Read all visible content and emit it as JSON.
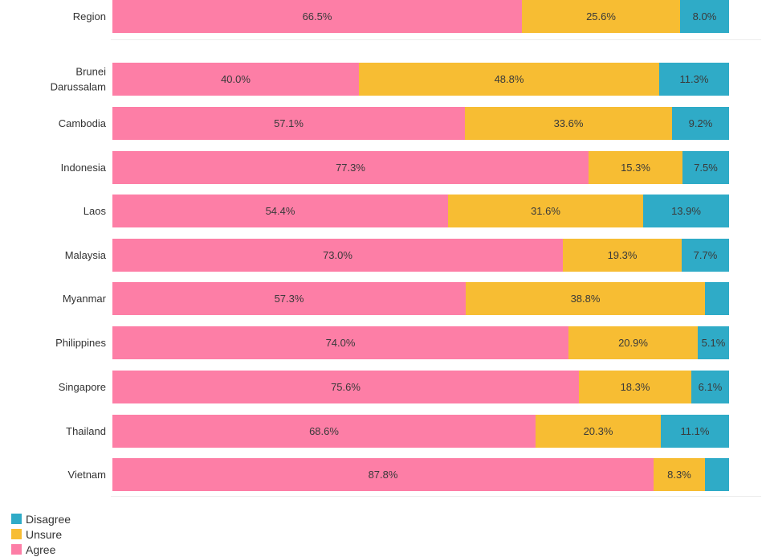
{
  "chart_data": {
    "type": "bar",
    "orientation": "horizontal",
    "stacked": true,
    "title": "",
    "xlabel": "",
    "ylabel": "",
    "xlim": [
      0,
      100
    ],
    "categories": [
      "Region",
      "Brunei Darussalam",
      "Cambodia",
      "Indonesia",
      "Laos",
      "Malaysia",
      "Myanmar",
      "Philippines",
      "Singapore",
      "Thailand",
      "Vietnam"
    ],
    "category_lines": [
      [
        "Region"
      ],
      [
        "Brunei",
        "Darussalam"
      ],
      [
        "Cambodia"
      ],
      [
        "Indonesia"
      ],
      [
        "Laos"
      ],
      [
        "Malaysia"
      ],
      [
        "Myanmar"
      ],
      [
        "Philippines"
      ],
      [
        "Singapore"
      ],
      [
        "Thailand"
      ],
      [
        "Vietnam"
      ]
    ],
    "series": [
      {
        "name": "Agree",
        "color": "#fd7ea6",
        "values": [
          66.5,
          40.0,
          57.1,
          77.3,
          54.4,
          73.0,
          57.3,
          74.0,
          75.6,
          68.6,
          87.8
        ],
        "labels": [
          "66.5%",
          "40.0%",
          "57.1%",
          "77.3%",
          "54.4%",
          "73.0%",
          "57.3%",
          "74.0%",
          "75.6%",
          "68.6%",
          "87.8%"
        ]
      },
      {
        "name": "Unsure",
        "color": "#f7bd33",
        "values": [
          25.6,
          48.8,
          33.6,
          15.3,
          31.6,
          19.3,
          38.8,
          20.9,
          18.3,
          20.3,
          8.3
        ],
        "labels": [
          "25.6%",
          "48.8%",
          "33.6%",
          "15.3%",
          "31.6%",
          "19.3%",
          "38.8%",
          "20.9%",
          "18.3%",
          "20.3%",
          "8.3%"
        ]
      },
      {
        "name": "Disagree",
        "color": "#2fabc7",
        "values": [
          8.0,
          11.3,
          9.2,
          7.5,
          13.9,
          7.7,
          3.9,
          5.1,
          6.1,
          11.1,
          3.9
        ],
        "labels": [
          "8.0%",
          "11.3%",
          "9.2%",
          "7.5%",
          "13.9%",
          "7.7%",
          "",
          "5.1%",
          "6.1%",
          "11.1%",
          ""
        ]
      }
    ],
    "legend": {
      "position": "bottom-left",
      "items": [
        {
          "name": "Disagree",
          "color": "#2fabc7"
        },
        {
          "name": "Unsure",
          "color": "#f7bd33"
        },
        {
          "name": "Agree",
          "color": "#fd7ea6"
        }
      ]
    }
  }
}
